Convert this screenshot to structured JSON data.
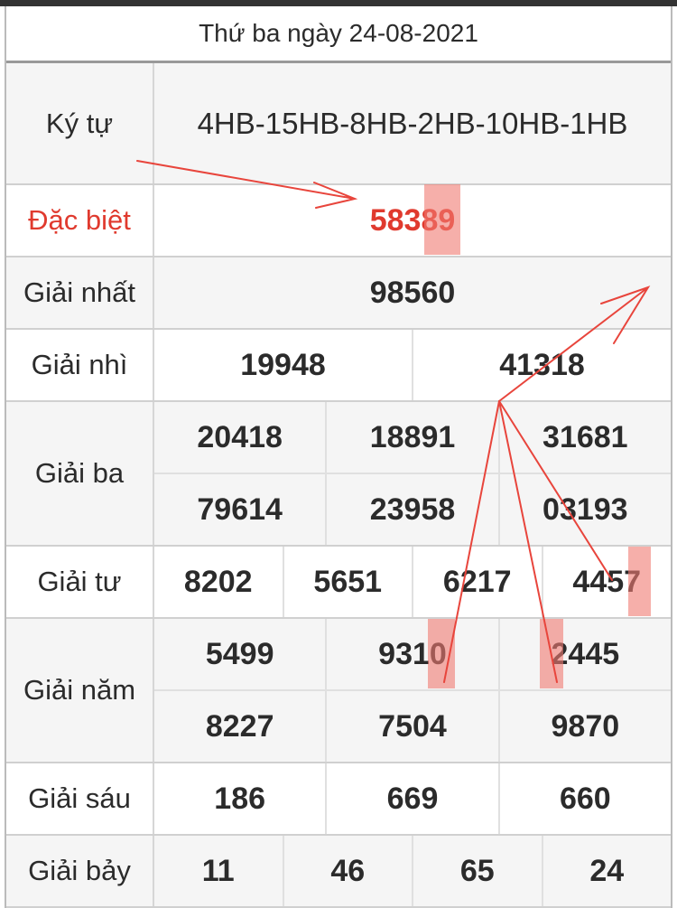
{
  "header": {
    "title": "Thứ ba ngày 24-08-2021"
  },
  "rows": {
    "ky_tu": {
      "label": "Ký tự",
      "values": [
        "4HB-15HB-8HB-2HB-10HB-1HB"
      ]
    },
    "dac_biet": {
      "label": "Đặc biệt",
      "values": [
        "58389"
      ]
    },
    "giai_nhat": {
      "label": "Giải nhất",
      "values": [
        "98560"
      ]
    },
    "giai_nhi": {
      "label": "Giải nhì",
      "values": [
        "19948",
        "41318"
      ]
    },
    "giai_ba": {
      "label": "Giải ba",
      "values": [
        "20418",
        "18891",
        "31681",
        "79614",
        "23958",
        "03193"
      ]
    },
    "giai_tu": {
      "label": "Giải tư",
      "values": [
        "8202",
        "5651",
        "6217",
        "4457"
      ]
    },
    "giai_nam": {
      "label": "Giải năm",
      "values": [
        "5499",
        "9310",
        "2445",
        "8227",
        "7504",
        "9870"
      ]
    },
    "giai_sau": {
      "label": "Giải sáu",
      "values": [
        "186",
        "669",
        "660"
      ]
    },
    "giai_bay": {
      "label": "Giải bảy",
      "values": [
        "11",
        "46",
        "65",
        "24"
      ]
    }
  },
  "colors": {
    "accent_red": "#e03a2e",
    "annotation": "#e8453c",
    "highlight": "#f07a72"
  }
}
